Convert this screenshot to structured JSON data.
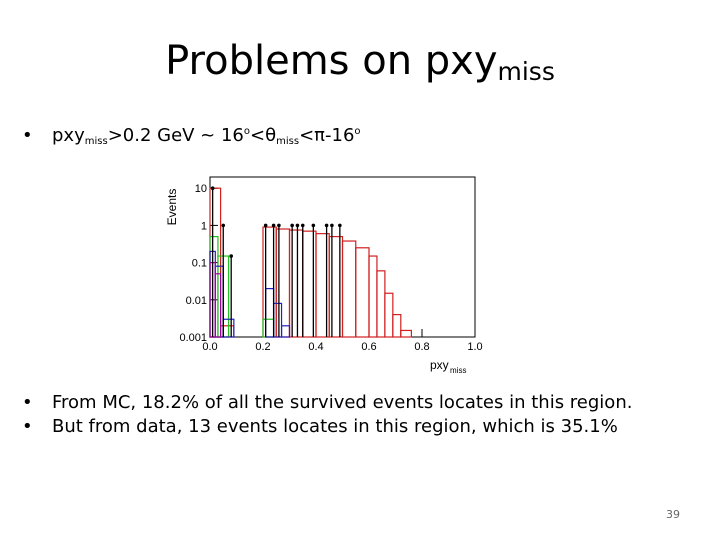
{
  "slide": {
    "title_main": "Problems on pxy",
    "title_sub": "miss",
    "bullet1": {
      "p1": "pxy",
      "p2": "miss",
      "p3": ">0.2 GeV ~ 16",
      "p4": "o",
      "p5": "<θ",
      "p6": "miss",
      "p7": "<π-16",
      "p8": "o"
    },
    "bullet2": "From MC, 18.2% of all the survived events locates in this region.",
    "bullet3": "But from data, 13 events locates in this region, which is 35.1%",
    "bullet_marker": "•",
    "page_number": "39"
  },
  "chart_data": {
    "type": "histogram",
    "ylabel": "Events",
    "xlabel": "pxy",
    "xlabel_sub": "miss",
    "xlim": [
      0.0,
      1.0
    ],
    "ylim": [
      0.001,
      20
    ],
    "log_y": true,
    "x_ticks": [
      "0.0",
      "0.2",
      "0.4",
      "0.6",
      "0.8",
      "1.0"
    ],
    "y_ticks": [
      "0.001",
      "0.01",
      "0.1",
      "1",
      "10"
    ],
    "series": [
      {
        "color": "#d02020",
        "bins": [
          [
            0.0,
            0.04,
            10
          ],
          [
            0.04,
            0.09,
            0.002
          ],
          [
            0.2,
            0.25,
            0.9
          ],
          [
            0.25,
            0.3,
            0.8
          ],
          [
            0.3,
            0.35,
            0.75
          ],
          [
            0.35,
            0.4,
            0.7
          ],
          [
            0.4,
            0.45,
            0.6
          ],
          [
            0.45,
            0.5,
            0.5
          ],
          [
            0.5,
            0.55,
            0.38
          ],
          [
            0.55,
            0.6,
            0.25
          ],
          [
            0.6,
            0.63,
            0.15
          ],
          [
            0.63,
            0.66,
            0.06
          ],
          [
            0.66,
            0.69,
            0.015
          ],
          [
            0.69,
            0.72,
            0.004
          ],
          [
            0.72,
            0.76,
            0.0015
          ]
        ]
      },
      {
        "color": "#20c020",
        "bins": [
          [
            0.0,
            0.03,
            0.5
          ],
          [
            0.03,
            0.07,
            0.15
          ],
          [
            0.2,
            0.24,
            0.003
          ]
        ]
      },
      {
        "color": "#2020c0",
        "bins": [
          [
            0.0,
            0.02,
            0.2
          ],
          [
            0.02,
            0.05,
            0.08
          ],
          [
            0.05,
            0.09,
            0.003
          ],
          [
            0.21,
            0.24,
            0.02
          ],
          [
            0.24,
            0.27,
            0.008
          ],
          [
            0.27,
            0.3,
            0.002
          ]
        ]
      },
      {
        "color": "#a000a0",
        "bins": [
          [
            0.0,
            0.02,
            0.1
          ],
          [
            0.02,
            0.04,
            0.05
          ]
        ]
      },
      {
        "color": "#000000",
        "points": [
          [
            0.01,
            10
          ],
          [
            0.05,
            1
          ],
          [
            0.08,
            0.15
          ],
          [
            0.21,
            1
          ],
          [
            0.24,
            1
          ],
          [
            0.26,
            1
          ],
          [
            0.31,
            1
          ],
          [
            0.33,
            1
          ],
          [
            0.35,
            1
          ],
          [
            0.39,
            1
          ],
          [
            0.44,
            1
          ],
          [
            0.46,
            1
          ],
          [
            0.49,
            1
          ]
        ]
      }
    ]
  }
}
